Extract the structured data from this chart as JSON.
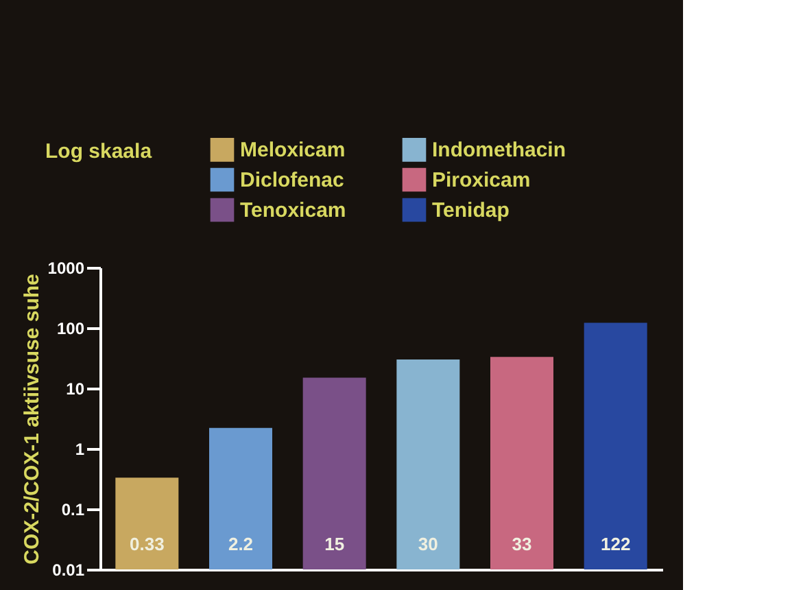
{
  "chart_data": {
    "type": "bar",
    "ylabel": "COX-2/COX-1 aktiivsuse suhe",
    "annotations": [
      "Log skaala"
    ],
    "categories": [
      null,
      null,
      null,
      null,
      null,
      null
    ],
    "series": [
      {
        "name": "Meloxicam",
        "color": "#c8a860",
        "values": [
          0.33,
          null,
          null,
          null,
          null,
          null
        ]
      },
      {
        "name": "Diclofenac",
        "color": "#6a9ad0",
        "values": [
          null,
          2.2,
          null,
          null,
          null,
          null
        ]
      },
      {
        "name": "Tenoxicam",
        "color": "#7a5088",
        "values": [
          null,
          null,
          15,
          null,
          null,
          null
        ]
      },
      {
        "name": "Indomethacin",
        "color": "#88b4d0",
        "values": [
          null,
          null,
          null,
          30,
          null,
          null
        ]
      },
      {
        "name": "Piroxicam",
        "color": "#c86880",
        "values": [
          null,
          null,
          null,
          null,
          33,
          null
        ]
      },
      {
        "name": "Tenidap",
        "color": "#2848a0",
        "values": [
          null,
          null,
          null,
          null,
          null,
          122
        ]
      }
    ],
    "log": true,
    "ylim": [
      0.01,
      1000
    ],
    "yticks": [
      0.01,
      0.1,
      1,
      10,
      100,
      1000
    ],
    "data_labels": true,
    "legend": "top",
    "grid": false,
    "tick_labels": "y"
  }
}
